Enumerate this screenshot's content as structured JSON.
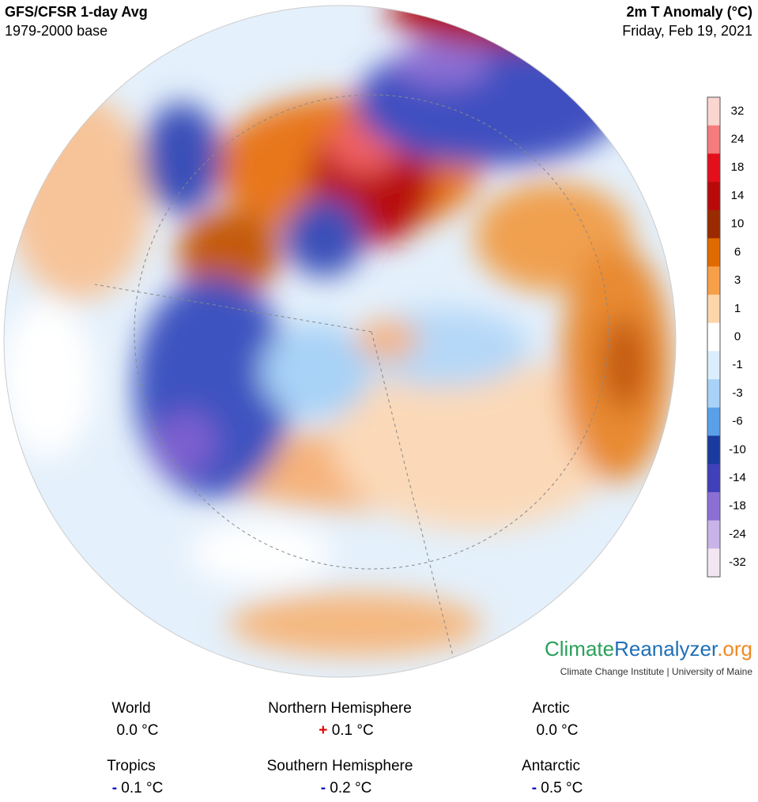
{
  "header": {
    "title": "GFS/CFSR 1-day Avg",
    "subtitle": "1979-2000 base",
    "variable": "2m T Anomaly (°C)",
    "date": "Friday, Feb 19, 2021"
  },
  "colorbar": {
    "ticks": [
      "32",
      "24",
      "18",
      "14",
      "10",
      "6",
      "3",
      "1",
      "0",
      "-1",
      "-3",
      "-6",
      "-10",
      "-14",
      "-18",
      "-24",
      "-32"
    ],
    "colors": [
      "#fbd5d0",
      "#f47c7c",
      "#e3101b",
      "#b80a0a",
      "#9a2a00",
      "#e06a00",
      "#f7a04a",
      "#fdd5aa",
      "#ffffff",
      "#dceefd",
      "#a8d2f7",
      "#5aa0e8",
      "#1a3b9e",
      "#4040b8",
      "#8c6fd4",
      "#c8b4e8",
      "#f2e6f0"
    ]
  },
  "branding": {
    "name": [
      "Climate",
      "Reanalyzer",
      ".org"
    ],
    "colors": [
      "#2aa05a",
      "#1f6fb5",
      "#f08a24"
    ],
    "affiliation": "Climate Change Institute | University of Maine"
  },
  "stats": [
    {
      "label": "World",
      "value": "0.0 °C"
    },
    {
      "label": "Northern Hemisphere",
      "sign": "+",
      "value": "0.1 °C"
    },
    {
      "label": "Arctic",
      "value": "0.0 °C"
    },
    {
      "label": "Tropics",
      "sign": "-",
      "value": "0.1 °C"
    },
    {
      "label": "Southern Hemisphere",
      "sign": "-",
      "value": "0.2 °C"
    },
    {
      "label": "Antarctic",
      "sign": "-",
      "value": "0.5 °C"
    }
  ]
}
